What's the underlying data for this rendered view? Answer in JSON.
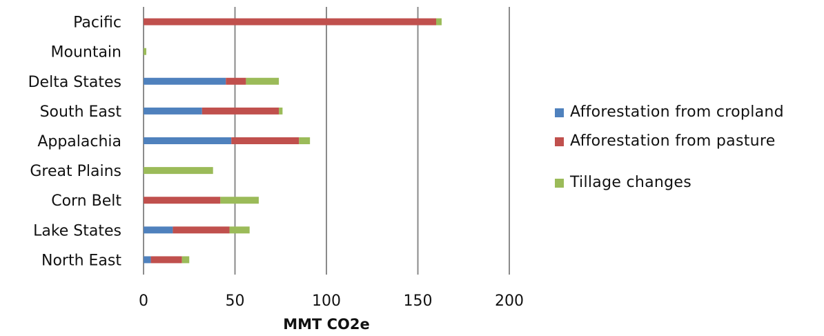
{
  "chart_data": {
    "type": "bar",
    "orientation": "horizontal",
    "stacked": true,
    "categories": [
      "Pacific",
      "Mountain",
      "Delta States",
      "South East",
      "Appalachia",
      "Great Plains",
      "Corn  Belt",
      "Lake States",
      "North East"
    ],
    "series": [
      {
        "name": "Afforestation  from cropland",
        "color": "#4F81BD",
        "values": [
          0,
          0,
          45,
          32,
          48,
          0,
          0,
          16,
          4
        ]
      },
      {
        "name": "Afforestation from pasture",
        "color": "#C0504D",
        "values": [
          160,
          0,
          11,
          42,
          37,
          0,
          42,
          31,
          17
        ]
      },
      {
        "name": "Tillage changes",
        "color": "#9BBB59",
        "values": [
          3,
          1.5,
          18,
          2,
          6,
          38,
          21,
          11,
          4
        ]
      }
    ],
    "x_ticks": [
      "0",
      "50",
      "100",
      "150",
      "200"
    ],
    "xlim": [
      0,
      200
    ],
    "xlabel": "MMT CO2e",
    "ylabel": "",
    "title": "",
    "grid": "vertical",
    "legend_position": "right"
  }
}
